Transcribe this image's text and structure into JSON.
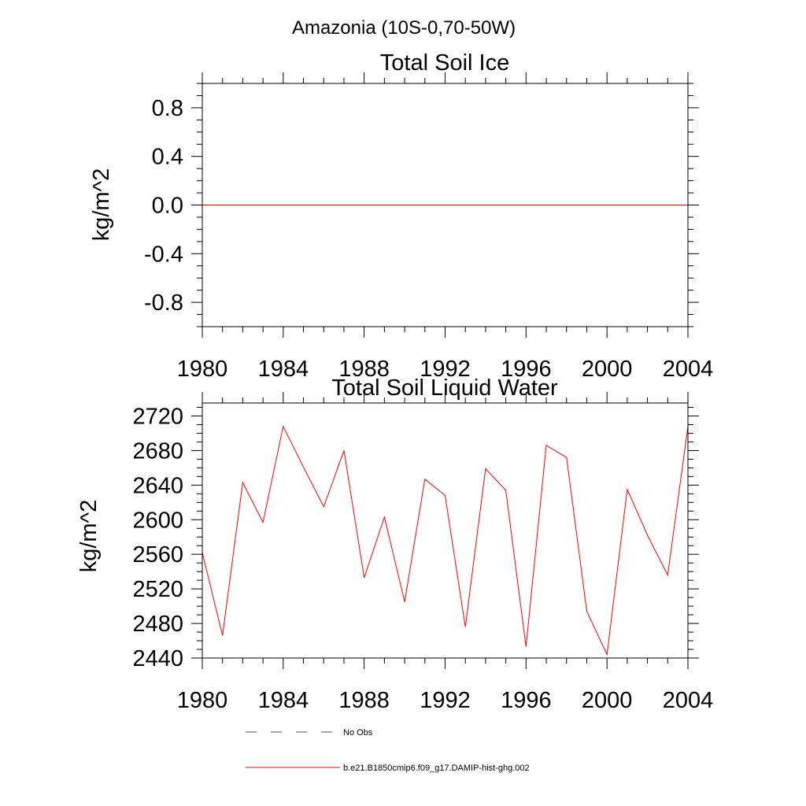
{
  "figure": {
    "suptitle": "Amazonia (10S-0,70-50W)"
  },
  "chart_data": [
    {
      "type": "line",
      "title": "Total Soil Ice",
      "xlabel": "",
      "ylabel": "kg/m^2",
      "xlim": [
        1980,
        2004
      ],
      "ylim": [
        -1.0,
        1.0
      ],
      "xticks": [
        "1980",
        "1984",
        "1988",
        "1992",
        "1996",
        "2000",
        "2004"
      ],
      "yticks": [
        "0.8",
        "0.4",
        "0.0",
        "-0.4",
        "-0.8"
      ],
      "ytick_values": [
        0.8,
        0.4,
        0.0,
        -0.4,
        -0.8
      ],
      "series": [
        {
          "name": "b.e21.B1850cmip6.f09_g17.DAMIP-hist-ghg.002",
          "color": "#ff0000",
          "x": [
            1980,
            1981,
            1982,
            1983,
            1984,
            1985,
            1986,
            1987,
            1988,
            1989,
            1990,
            1991,
            1992,
            1993,
            1994,
            1995,
            1996,
            1997,
            1998,
            1999,
            2000,
            2001,
            2002,
            2003,
            2004
          ],
          "values": [
            0,
            0,
            0,
            0,
            0,
            0,
            0,
            0,
            0,
            0,
            0,
            0,
            0,
            0,
            0,
            0,
            0,
            0,
            0,
            0,
            0,
            0,
            0,
            0,
            0
          ]
        }
      ]
    },
    {
      "type": "line",
      "title": "Total Soil Liquid Water",
      "xlabel": "",
      "ylabel": "kg/m^2",
      "xlim": [
        1980,
        2004
      ],
      "ylim": [
        2440,
        2735
      ],
      "xticks": [
        "1980",
        "1984",
        "1988",
        "1992",
        "1996",
        "2000",
        "2004"
      ],
      "yticks": [
        "2720",
        "2680",
        "2640",
        "2600",
        "2560",
        "2520",
        "2480",
        "2440"
      ],
      "ytick_values": [
        2720,
        2680,
        2640,
        2600,
        2560,
        2520,
        2480,
        2440
      ],
      "series": [
        {
          "name": "b.e21.B1850cmip6.f09_g17.DAMIP-hist-ghg.002",
          "color": "#ff0000",
          "x": [
            1980,
            1981,
            1982,
            1983,
            1984,
            1985,
            1986,
            1987,
            1988,
            1989,
            1990,
            1991,
            1992,
            1993,
            1994,
            1995,
            1996,
            1997,
            1998,
            1999,
            2000,
            2001,
            2002,
            2003,
            2004
          ],
          "values": [
            2562,
            2466,
            2643,
            2597,
            2708,
            2661,
            2615,
            2680,
            2533,
            2603,
            2505,
            2647,
            2628,
            2476,
            2659,
            2634,
            2453,
            2686,
            2672,
            2494,
            2444,
            2635,
            2582,
            2536,
            2708
          ]
        }
      ]
    }
  ],
  "legend": {
    "items": [
      {
        "label": "No Obs",
        "color": "#4a4a9a",
        "style": "dashed"
      },
      {
        "label": "b.e21.B1850cmip6.f09_g17.DAMIP-hist-ghg.002",
        "color": "#ff0000",
        "style": "solid"
      }
    ]
  }
}
